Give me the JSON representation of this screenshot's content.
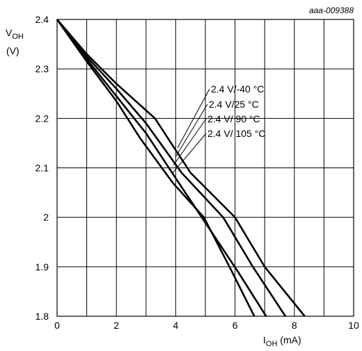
{
  "figure_code": "aaa-009388",
  "chart_data": {
    "type": "line",
    "xlabel_main": "I",
    "xlabel_sub": "OH",
    "xlabel_unit": " (mA)",
    "ylabel_main": "V",
    "ylabel_sub": "OH",
    "ylabel_unit": "(V)",
    "xlim": [
      0,
      10
    ],
    "ylim": [
      1.8,
      2.4
    ],
    "x_ticks": [
      0,
      2,
      4,
      6,
      8,
      10
    ],
    "x_tick_labels": [
      "0",
      "2",
      "4",
      "6",
      "8",
      "10"
    ],
    "y_ticks": [
      1.8,
      1.9,
      2.0,
      2.1,
      2.2,
      2.3,
      2.4
    ],
    "y_tick_labels": [
      "1.8",
      "1.9",
      "2",
      "2.1",
      "2.2",
      "2.3",
      "2.4"
    ],
    "grid": true,
    "legend_position": "center-right",
    "series": [
      {
        "name": "2.4 V/-40 °C",
        "x": [
          0,
          1,
          2,
          3.3,
          4.5,
          6.0,
          7.0,
          8.35
        ],
        "y": [
          2.4,
          2.33,
          2.27,
          2.2,
          2.09,
          2.0,
          1.9,
          1.8
        ]
      },
      {
        "name": "2.4 V/25 °C",
        "x": [
          0,
          1,
          2,
          3.0,
          4.2,
          5.6,
          6.6,
          7.7
        ],
        "y": [
          2.4,
          2.325,
          2.26,
          2.19,
          2.09,
          2.0,
          1.9,
          1.8
        ]
      },
      {
        "name": "2.4 V/ 90 °C",
        "x": [
          0,
          1,
          2,
          3.0,
          4.1,
          5.1,
          6.1,
          7.05
        ],
        "y": [
          2.4,
          2.32,
          2.245,
          2.17,
          2.07,
          1.98,
          1.89,
          1.8
        ]
      },
      {
        "name": "2.4 V/ 105 °C",
        "x": [
          0,
          1,
          2,
          2.8,
          3.9,
          4.95,
          5.9,
          6.65
        ],
        "y": [
          2.4,
          2.315,
          2.235,
          2.16,
          2.07,
          2.0,
          1.89,
          1.8
        ]
      }
    ]
  }
}
